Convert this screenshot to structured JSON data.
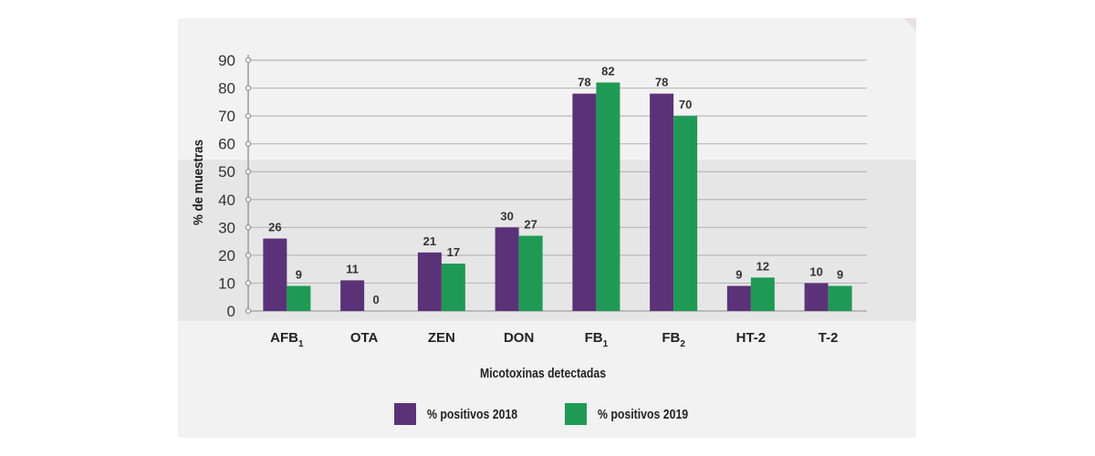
{
  "chart_data": {
    "type": "bar",
    "categories": [
      {
        "base": "AFB",
        "sub": "1"
      },
      {
        "base": "OTA",
        "sub": ""
      },
      {
        "base": "ZEN",
        "sub": ""
      },
      {
        "base": "DON",
        "sub": ""
      },
      {
        "base": "FB",
        "sub": "1"
      },
      {
        "base": "FB",
        "sub": "2"
      },
      {
        "base": "HT-2",
        "sub": ""
      },
      {
        "base": "T-2",
        "sub": ""
      }
    ],
    "series": [
      {
        "name": "% positivos 2018",
        "color": "#5b3278",
        "values": [
          26,
          11,
          21,
          30,
          78,
          78,
          9,
          10
        ]
      },
      {
        "name": "% positivos 2019",
        "color": "#1f9a55",
        "values": [
          9,
          0,
          17,
          27,
          82,
          70,
          12,
          9
        ]
      }
    ],
    "xlabel": "Micotoxinas detectadas",
    "ylabel": "% de muestras",
    "ylim": [
      0,
      90
    ],
    "yticks": [
      0,
      10,
      20,
      30,
      40,
      50,
      60,
      70,
      80,
      90
    ],
    "grid": true,
    "legend_position": "bottom"
  }
}
